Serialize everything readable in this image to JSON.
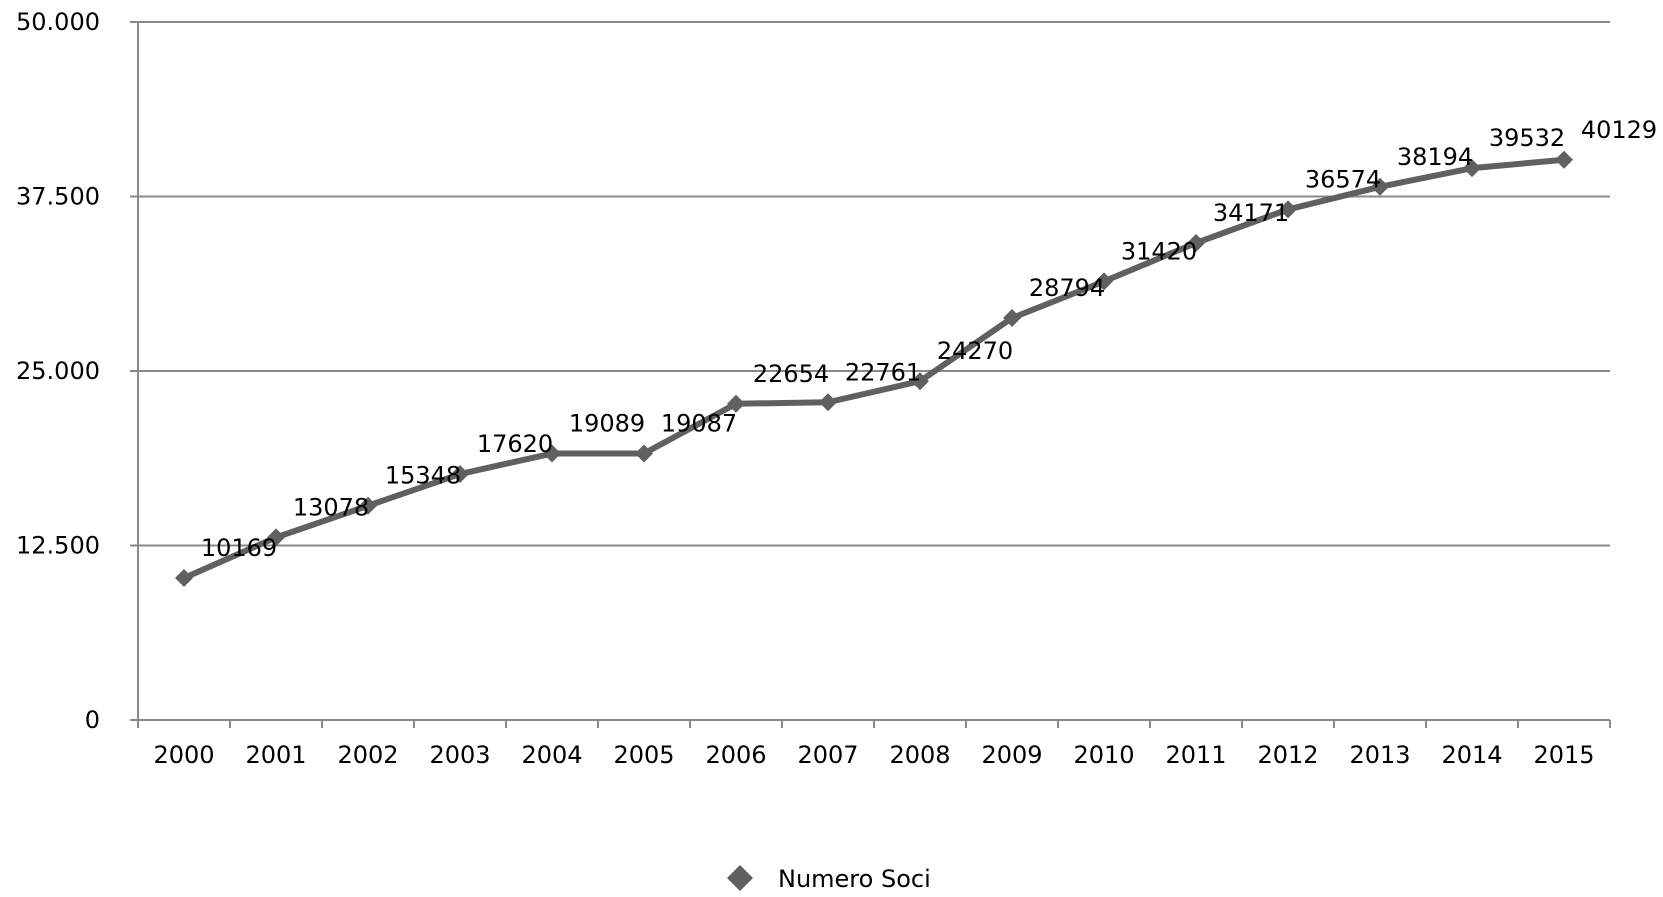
{
  "chart_data": {
    "type": "line",
    "title": "",
    "xlabel": "",
    "ylabel": "",
    "categories": [
      "2000",
      "2001",
      "2002",
      "2003",
      "2004",
      "2005",
      "2006",
      "2007",
      "2008",
      "2009",
      "2010",
      "2011",
      "2012",
      "2013",
      "2014",
      "2015"
    ],
    "series": [
      {
        "name": "Numero Soci",
        "values": [
          10169,
          13078,
          15348,
          17620,
          19089,
          19087,
          22654,
          22761,
          24270,
          28794,
          31420,
          34171,
          36574,
          38194,
          39532,
          40129
        ]
      }
    ],
    "data_labels": [
      "10169",
      "13078",
      "15348",
      "17620",
      "19089",
      "19087",
      "22654",
      "22761",
      "24270",
      "28794",
      "31420",
      "34171",
      "36574",
      "38194",
      "39532",
      "40129"
    ],
    "ylim": [
      0,
      50000
    ],
    "yticks": [
      0,
      12500,
      25000,
      37500,
      50000
    ],
    "ytick_labels": [
      "0",
      "12.500",
      "25.000",
      "37.500",
      "50.000"
    ],
    "grid": "horizontal",
    "legend": "bottom",
    "colors": {
      "series": "#606060",
      "grid": "#888888",
      "axis": "#888888",
      "text": "#000000"
    }
  }
}
